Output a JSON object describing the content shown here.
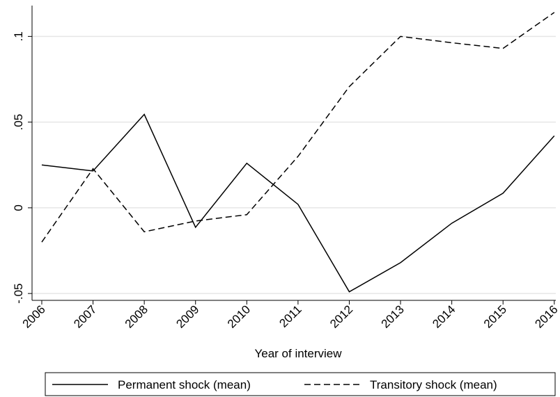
{
  "chart_data": {
    "type": "line",
    "xlabel": "Year of interview",
    "x": [
      2006,
      2007,
      2008,
      2009,
      2010,
      2011,
      2012,
      2013,
      2014,
      2015,
      2016
    ],
    "series": [
      {
        "name": "Permanent shock (mean)",
        "color": "#000000",
        "dash": "solid",
        "values": [
          0.025,
          0.0215,
          0.0545,
          -0.0114,
          0.026,
          0.002,
          -0.049,
          -0.032,
          -0.009,
          0.0085,
          0.042
        ]
      },
      {
        "name": "Transitory shock (mean)",
        "color": "#000000",
        "dash": "dashed",
        "values": [
          -0.02,
          0.0228,
          -0.014,
          -0.0077,
          -0.004,
          0.03,
          0.0707,
          0.1,
          0.0963,
          0.093,
          0.114
        ]
      }
    ],
    "xlim": [
      2005.81,
      2016.03
    ],
    "xticks": [
      2006,
      2007,
      2008,
      2009,
      2010,
      2011,
      2012,
      2013,
      2014,
      2015,
      2016
    ],
    "ylim": [
      -0.054,
      0.118
    ],
    "yticks": [
      {
        "value": -0.05,
        "label": "-.05"
      },
      {
        "value": 0,
        "label": "0"
      },
      {
        "value": 0.05,
        "label": ".05"
      },
      {
        "value": 0.1,
        "label": ".1"
      }
    ],
    "grid": true,
    "legend_position": "bottom"
  }
}
